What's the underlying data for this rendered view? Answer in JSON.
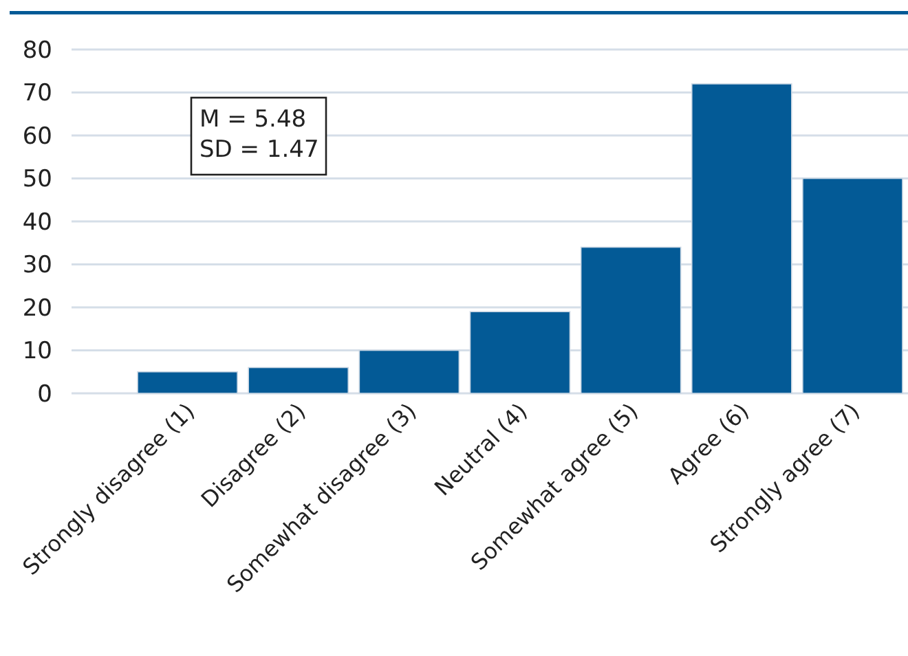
{
  "chart_data": {
    "type": "bar",
    "categories": [
      "Strongly disagree (1)",
      "Disagree (2)",
      "Somewhat disagree (3)",
      "Neutral (4)",
      "Somewhat agree (5)",
      "Agree (6)",
      "Strongly agree (7)"
    ],
    "values": [
      5,
      6,
      10,
      19,
      34,
      72,
      50
    ],
    "color": "#035a96",
    "ylim": [
      0,
      80
    ],
    "yticks": [
      0,
      10,
      20,
      30,
      40,
      50,
      60,
      70,
      80
    ],
    "grid": "y",
    "annotations": [
      "M = 5.48\nSD = 1.47"
    ]
  }
}
